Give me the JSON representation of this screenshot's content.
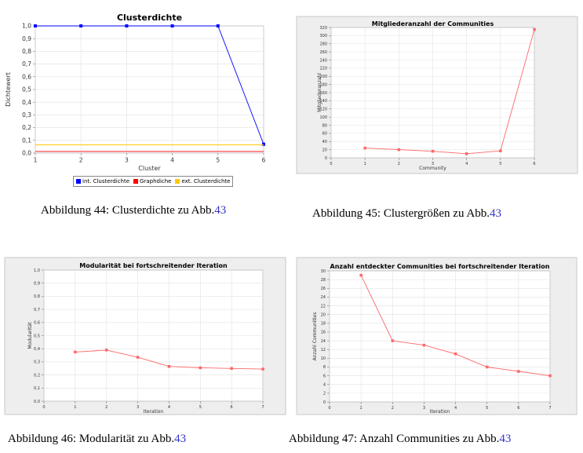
{
  "chart_data": [
    {
      "id": "c44",
      "type": "line",
      "title": "Clusterdichte",
      "xlabel": "Cluster",
      "ylabel": "Dichtewert",
      "xlim": [
        1,
        6
      ],
      "ylim": [
        0,
        1.0
      ],
      "xticks": [
        "1",
        "2",
        "3",
        "4",
        "5",
        "6"
      ],
      "yticks": [
        "0,0",
        "0,1",
        "0,2",
        "0,3",
        "0,4",
        "0,5",
        "0,6",
        "0,7",
        "0,8",
        "0,9",
        "1,0"
      ],
      "grid": true,
      "legend": "bottom",
      "series": [
        {
          "name": "int. Clusterdichte",
          "color": "#0000ff",
          "x": [
            1,
            2,
            3,
            4,
            5,
            6
          ],
          "y": [
            1.0,
            1.0,
            1.0,
            1.0,
            1.0,
            0.07
          ],
          "markers": true
        },
        {
          "name": "Graphdiche",
          "color": "#ff0000",
          "x": [
            1,
            6
          ],
          "y": [
            0.013,
            0.013
          ],
          "markers": false
        },
        {
          "name": "ext. Clusterdichte",
          "color": "#ffc800",
          "x": [
            1,
            6
          ],
          "y": [
            0.065,
            0.065
          ],
          "markers": false
        }
      ]
    },
    {
      "id": "c45",
      "type": "line",
      "title": "Mitgliederanzahl der Communities",
      "xlabel": "Community",
      "ylabel": "Mitgliederanzahl",
      "xlim": [
        0,
        6
      ],
      "ylim": [
        0,
        320
      ],
      "xticks": [
        "0",
        "1",
        "2",
        "3",
        "4",
        "5",
        "6"
      ],
      "yticks": [
        "0",
        "20",
        "40",
        "60",
        "80",
        "100",
        "120",
        "140",
        "160",
        "180",
        "200",
        "220",
        "240",
        "260",
        "280",
        "300",
        "320"
      ],
      "grid": true,
      "series": [
        {
          "color": "#ff6666",
          "x": [
            1,
            2,
            3,
            4,
            5,
            6
          ],
          "y": [
            24,
            20,
            16,
            10,
            17,
            315
          ],
          "markers": true
        }
      ]
    },
    {
      "id": "c46",
      "type": "line",
      "title": "Modularität bei fortschreitender Iteration",
      "xlabel": "Iteration",
      "ylabel": "Modularität",
      "xlim": [
        0,
        7
      ],
      "ylim": [
        0,
        1.0
      ],
      "xticks": [
        "0",
        "1",
        "2",
        "3",
        "4",
        "5",
        "6",
        "7"
      ],
      "yticks": [
        "0,0",
        "0,1",
        "0,2",
        "0,3",
        "0,4",
        "0,5",
        "0,6",
        "0,7",
        "0,8",
        "0,9",
        "1,0"
      ],
      "grid": true,
      "series": [
        {
          "color": "#ff6666",
          "x": [
            1,
            2,
            3,
            4,
            5,
            6,
            7
          ],
          "y": [
            0.375,
            0.39,
            0.335,
            0.265,
            0.255,
            0.25,
            0.245
          ],
          "markers": true
        }
      ]
    },
    {
      "id": "c47",
      "type": "line",
      "title": "Anzahl entdeckter Communities bei fortschreitender Iteration",
      "xlabel": "Iteration",
      "ylabel": "Anzahl Communities",
      "xlim": [
        0,
        7
      ],
      "ylim": [
        0,
        30
      ],
      "xticks": [
        "0",
        "1",
        "2",
        "3",
        "4",
        "5",
        "6",
        "7"
      ],
      "yticks": [
        "0",
        "2",
        "4",
        "6",
        "8",
        "10",
        "12",
        "14",
        "16",
        "18",
        "20",
        "22",
        "24",
        "26",
        "28",
        "30"
      ],
      "grid": true,
      "series": [
        {
          "color": "#ff6666",
          "x": [
            1,
            2,
            3,
            4,
            5,
            6,
            7
          ],
          "y": [
            29,
            14,
            13,
            11,
            8,
            7,
            6
          ],
          "markers": true
        }
      ]
    }
  ],
  "captions": {
    "c44": {
      "text": "Abbildung 44: Clusterdichte zu Abb.",
      "ref": "43"
    },
    "c45": {
      "text": "Abbildung 45: Clustergrößen zu Abb.",
      "ref": "43"
    },
    "c46": {
      "text": "Abbildung 46: Modularität zu Abb.",
      "ref": "43"
    },
    "c47": {
      "text": "Abbildung 47: Anzahl Communities zu Abb.",
      "ref": "43"
    }
  }
}
